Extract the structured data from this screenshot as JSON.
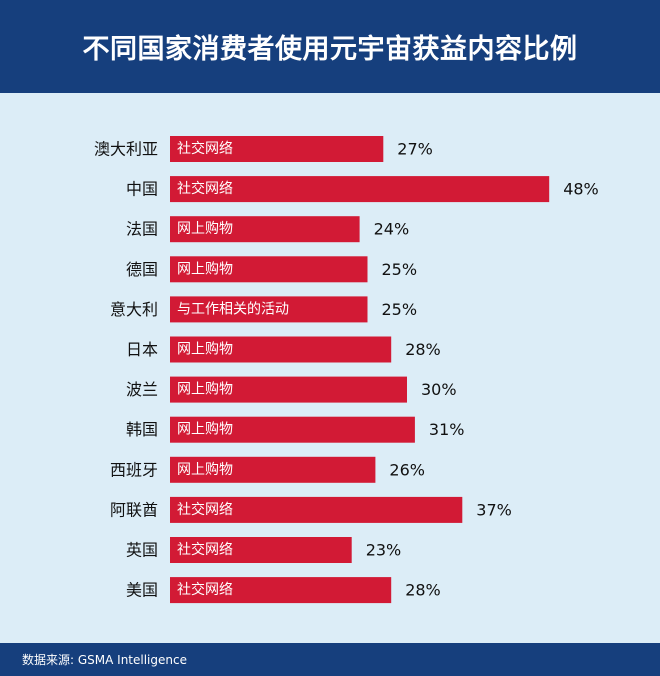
{
  "header": {
    "title": "不同国家消费者使用元宇宙获益内容比例"
  },
  "footer": {
    "source": "数据来源: GSMA Intelligence"
  },
  "colors": {
    "bar": "#d21a35",
    "header_bg": "#163f7d",
    "plot_bg": "#dcedf7"
  },
  "chart_data": {
    "type": "bar",
    "orientation": "horizontal",
    "title": "不同国家消费者使用元宇宙获益内容比例",
    "xlim": [
      0,
      60
    ],
    "grid": false,
    "categories": [
      "澳大利亚",
      "中国",
      "法国",
      "德国",
      "意大利",
      "日本",
      "波兰",
      "韩国",
      "西班牙",
      "阿联酋",
      "英国",
      "美国"
    ],
    "values": [
      27,
      48,
      24,
      25,
      25,
      28,
      30,
      31,
      26,
      37,
      23,
      28
    ],
    "value_labels": [
      "27%",
      "48%",
      "24%",
      "25%",
      "25%",
      "28%",
      "30%",
      "31%",
      "26%",
      "37%",
      "23%",
      "28%"
    ],
    "bar_labels": [
      "社交网络",
      "社交网络",
      "网上购物",
      "网上购物",
      "与工作相关的活动",
      "网上购物",
      "网上购物",
      "网上购物",
      "网上购物",
      "社交网络",
      "社交网络",
      "社交网络"
    ]
  }
}
